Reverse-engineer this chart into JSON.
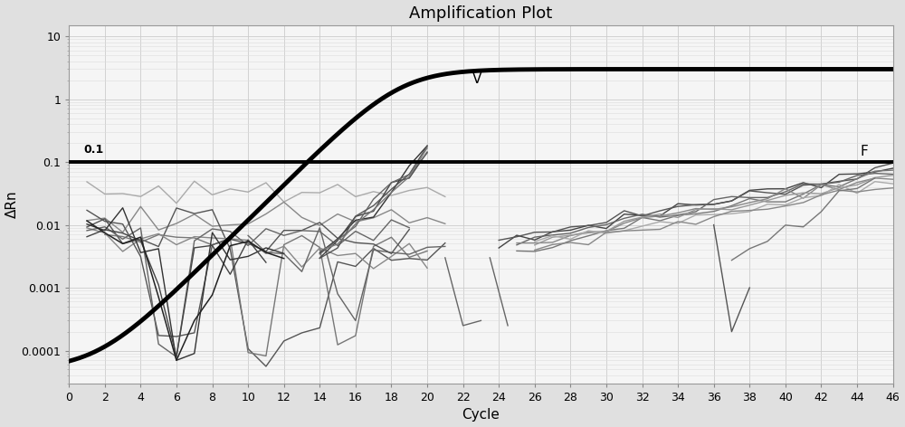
{
  "title": "Amplification Plot",
  "xlabel": "Cycle",
  "ylabel": "ΔRn",
  "xlim": [
    0,
    46
  ],
  "ylim_log": [
    3e-05,
    15
  ],
  "threshold": 0.1,
  "threshold_label": "0.1",
  "background_color": "#f5f5f5",
  "grid_color": "#dddddd",
  "threshold_color": "#000000",
  "curve_V_label": "V",
  "curve_F_label": "F",
  "x_ticks": [
    0,
    2,
    4,
    6,
    8,
    10,
    12,
    14,
    16,
    18,
    20,
    22,
    24,
    26,
    28,
    30,
    32,
    34,
    36,
    38,
    40,
    42,
    44,
    46
  ]
}
